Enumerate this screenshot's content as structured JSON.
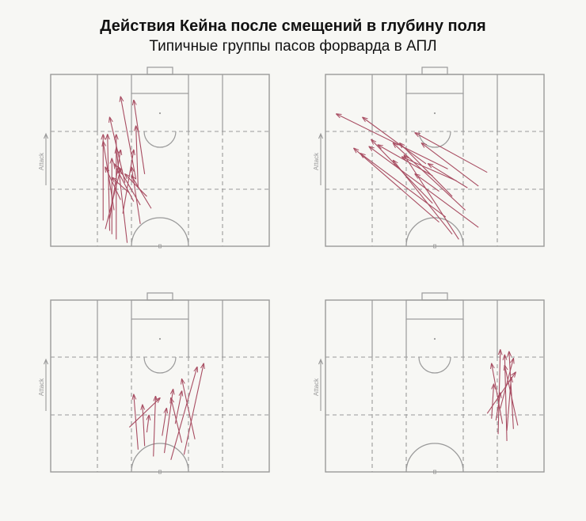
{
  "header": {
    "title": "Действия Кейна после смещений в глубину поля",
    "subtitle": "Типичные группы пасов форварда в АПЛ"
  },
  "colors": {
    "pass": "#a84d62",
    "pitch_line": "#9a9a9a",
    "axis_text": "#9a9a9a",
    "background": "#f7f7f4"
  },
  "chart_data": [
    {
      "type": "pass-map",
      "axis_label": "Attack",
      "passes": [
        {
          "from": [
            0.98,
            0.35
          ],
          "to": [
            0.43,
            0.3
          ]
        },
        {
          "from": [
            0.93,
            0.28
          ],
          "to": [
            0.49,
            0.28
          ]
        },
        {
          "from": [
            0.9,
            0.25
          ],
          "to": [
            0.55,
            0.32
          ]
        },
        {
          "from": [
            0.87,
            0.41
          ],
          "to": [
            0.54,
            0.37
          ]
        },
        {
          "from": [
            0.84,
            0.27
          ],
          "to": [
            0.44,
            0.32
          ]
        },
        {
          "from": [
            0.81,
            0.33
          ],
          "to": [
            0.44,
            0.38
          ]
        },
        {
          "from": [
            0.78,
            0.46
          ],
          "to": [
            0.59,
            0.37
          ]
        },
        {
          "from": [
            0.76,
            0.41
          ],
          "to": [
            0.54,
            0.31
          ]
        },
        {
          "from": [
            0.74,
            0.38
          ],
          "to": [
            0.52,
            0.29
          ]
        },
        {
          "from": [
            0.71,
            0.44
          ],
          "to": [
            0.58,
            0.34
          ]
        },
        {
          "from": [
            0.69,
            0.36
          ],
          "to": [
            0.6,
            0.28
          ]
        },
        {
          "from": [
            0.73,
            0.32
          ],
          "to": [
            0.54,
            0.25
          ]
        },
        {
          "from": [
            0.79,
            0.29
          ],
          "to": [
            0.39,
            0.24
          ]
        },
        {
          "from": [
            0.85,
            0.24
          ],
          "to": [
            0.35,
            0.24
          ]
        },
        {
          "from": [
            0.91,
            0.27
          ],
          "to": [
            0.35,
            0.26
          ]
        },
        {
          "from": [
            0.96,
            0.3
          ],
          "to": [
            0.35,
            0.3
          ]
        },
        {
          "from": [
            0.66,
            0.4
          ],
          "to": [
            0.3,
            0.39
          ]
        },
        {
          "from": [
            0.63,
            0.34
          ],
          "to": [
            0.25,
            0.27
          ]
        },
        {
          "from": [
            0.61,
            0.39
          ],
          "to": [
            0.13,
            0.32
          ]
        },
        {
          "from": [
            0.58,
            0.43
          ],
          "to": [
            0.15,
            0.38
          ]
        }
      ]
    },
    {
      "type": "pass-map",
      "axis_label": "Attack",
      "passes": [
        {
          "from": [
            0.96,
            0.61
          ],
          "to": [
            0.47,
            0.36
          ]
        },
        {
          "from": [
            0.93,
            0.58
          ],
          "to": [
            0.5,
            0.31
          ]
        },
        {
          "from": [
            0.89,
            0.7
          ],
          "to": [
            0.42,
            0.2
          ]
        },
        {
          "from": [
            0.86,
            0.52
          ],
          "to": [
            0.43,
            0.13
          ]
        },
        {
          "from": [
            0.83,
            0.55
          ],
          "to": [
            0.46,
            0.16
          ]
        },
        {
          "from": [
            0.79,
            0.64
          ],
          "to": [
            0.4,
            0.31
          ]
        },
        {
          "from": [
            0.75,
            0.49
          ],
          "to": [
            0.38,
            0.21
          ]
        },
        {
          "from": [
            0.71,
            0.58
          ],
          "to": [
            0.4,
            0.34
          ]
        },
        {
          "from": [
            0.68,
            0.52
          ],
          "to": [
            0.58,
            0.41
          ]
        },
        {
          "from": [
            0.65,
            0.7
          ],
          "to": [
            0.4,
            0.44
          ]
        },
        {
          "from": [
            0.62,
            0.6
          ],
          "to": [
            0.48,
            0.35
          ]
        },
        {
          "from": [
            0.59,
            0.49
          ],
          "to": [
            0.41,
            0.24
          ]
        },
        {
          "from": [
            0.57,
            0.74
          ],
          "to": [
            0.34,
            0.41
          ]
        },
        {
          "from": [
            0.55,
            0.56
          ],
          "to": [
            0.23,
            0.05
          ]
        },
        {
          "from": [
            0.52,
            0.46
          ],
          "to": [
            0.25,
            0.17
          ]
        },
        {
          "from": [
            0.66,
            0.65
          ],
          "to": [
            0.52,
            0.47
          ]
        }
      ]
    },
    {
      "type": "pass-map",
      "axis_label": "Attack",
      "passes": [
        {
          "from": [
            0.93,
            0.55
          ],
          "to": [
            0.39,
            0.67
          ]
        },
        {
          "from": [
            0.9,
            0.61
          ],
          "to": [
            0.37,
            0.7
          ]
        },
        {
          "from": [
            0.91,
            0.47
          ],
          "to": [
            0.56,
            0.48
          ]
        },
        {
          "from": [
            0.89,
            0.52
          ],
          "to": [
            0.52,
            0.56
          ]
        },
        {
          "from": [
            0.87,
            0.4
          ],
          "to": [
            0.55,
            0.38
          ]
        },
        {
          "from": [
            0.85,
            0.43
          ],
          "to": [
            0.61,
            0.42
          ]
        },
        {
          "from": [
            0.83,
            0.6
          ],
          "to": [
            0.57,
            0.55
          ]
        },
        {
          "from": [
            0.81,
            0.66
          ],
          "to": [
            0.46,
            0.6
          ]
        },
        {
          "from": [
            0.79,
            0.51
          ],
          "to": [
            0.63,
            0.53
          ]
        },
        {
          "from": [
            0.77,
            0.44
          ],
          "to": [
            0.67,
            0.45
          ]
        },
        {
          "from": [
            0.74,
            0.36
          ],
          "to": [
            0.57,
            0.5
          ]
        },
        {
          "from": [
            0.72,
            0.57
          ],
          "to": [
            0.53,
            0.6
          ]
        }
      ]
    },
    {
      "type": "pass-map",
      "axis_label": "Attack",
      "passes": [
        {
          "from": [
            0.82,
            0.83
          ],
          "to": [
            0.32,
            0.82
          ]
        },
        {
          "from": [
            0.78,
            0.79
          ],
          "to": [
            0.29,
            0.8
          ]
        },
        {
          "from": [
            0.75,
            0.86
          ],
          "to": [
            0.3,
            0.84
          ]
        },
        {
          "from": [
            0.72,
            0.81
          ],
          "to": [
            0.37,
            0.76
          ]
        },
        {
          "from": [
            0.69,
            0.76
          ],
          "to": [
            0.49,
            0.77
          ]
        },
        {
          "from": [
            0.73,
            0.88
          ],
          "to": [
            0.38,
            0.82
          ]
        },
        {
          "from": [
            0.66,
            0.74
          ],
          "to": [
            0.42,
            0.87
          ]
        },
        {
          "from": [
            0.63,
            0.8
          ],
          "to": [
            0.34,
            0.86
          ]
        },
        {
          "from": [
            0.7,
            0.78
          ],
          "to": [
            0.54,
            0.8
          ]
        },
        {
          "from": [
            0.76,
            0.83
          ],
          "to": [
            0.45,
            0.85
          ]
        }
      ]
    }
  ]
}
